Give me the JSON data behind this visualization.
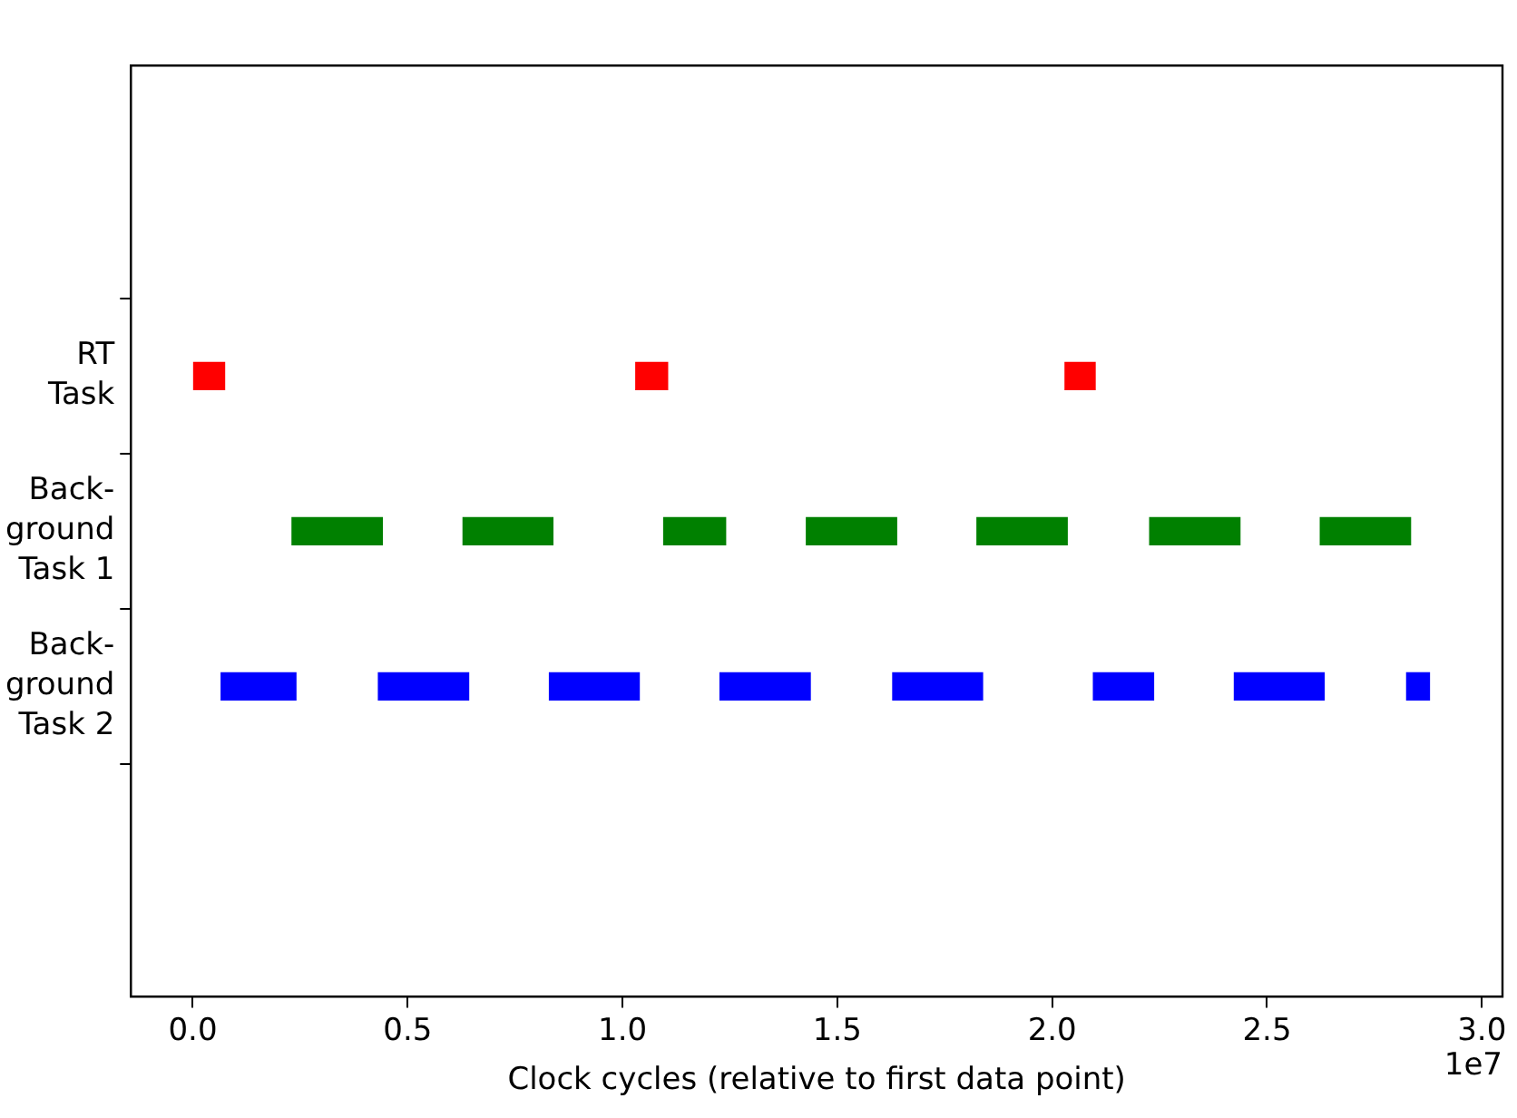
{
  "chart_data": {
    "type": "bar",
    "orientation": "horizontal",
    "xlabel": "Clock cycles (relative to first data point)",
    "categories": [
      "RT\nTask",
      "Back-\nground\nTask 1",
      "Back-\nground\nTask 2"
    ],
    "xlim": [
      -0.144,
      3.048
    ],
    "xticks": [
      {
        "value": 0,
        "label": "0.0"
      },
      {
        "value": 0.5,
        "label": "0.5"
      },
      {
        "value": 1,
        "label": "1.0"
      },
      {
        "value": 1.5,
        "label": "1.5"
      },
      {
        "value": 2,
        "label": "2.0"
      },
      {
        "value": 2.5,
        "label": "2.5"
      },
      {
        "value": 3,
        "label": "3.0"
      }
    ],
    "grid": false,
    "legend": false,
    "annotations": [
      "1e7"
    ],
    "series": [
      {
        "colors": [
          "#ff0000",
          "#008000",
          "#0000ff"
        ],
        "base": [
          0.0,
          0.231,
          0.066
        ],
        "values": [
          0.074,
          0.21,
          0.174
        ]
      },
      {
        "colors": [
          "#ff0000",
          "#008000",
          "#0000ff"
        ],
        "base": [
          1.031,
          0.629,
          0.432
        ],
        "values": [
          0.074,
          0.209,
          0.21
        ]
      },
      {
        "colors": [
          "#ff0000",
          "#008000",
          "#0000ff"
        ],
        "base": [
          2.03,
          1.096,
          0.83
        ],
        "values": [
          0.07,
          0.144,
          0.209
        ]
      },
      {
        "colors": [
          "#008000",
          "#008000",
          "#0000ff"
        ],
        "base": [
          null,
          1.428,
          1.227
        ],
        "values": [
          null,
          0.21,
          0.21
        ]
      },
      {
        "colors": [
          "#008000",
          "#008000",
          "#0000ff"
        ],
        "base": [
          null,
          1.825,
          1.629
        ],
        "values": [
          null,
          0.21,
          0.209
        ]
      },
      {
        "colors": [
          "#008000",
          "#008000",
          "#0000ff"
        ],
        "base": [
          null,
          2.227,
          2.096
        ],
        "values": [
          null,
          0.21,
          0.14
        ]
      },
      {
        "colors": [
          "#008000",
          "#008000",
          "#0000ff"
        ],
        "base": [
          null,
          2.624,
          2.424
        ],
        "values": [
          null,
          0.21,
          0.209
        ]
      },
      {
        "colors": [
          "#008000",
          "#008000",
          "#0000ff"
        ],
        "base": [
          null,
          null,
          2.825
        ],
        "values": [
          null,
          null,
          0.053
        ]
      }
    ]
  }
}
